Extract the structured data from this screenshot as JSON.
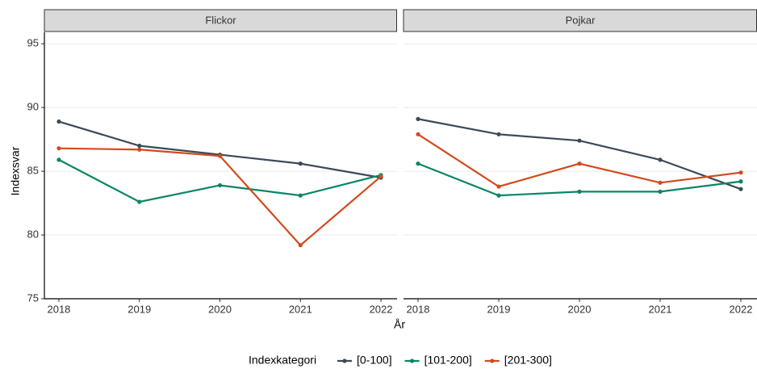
{
  "chart_data": [
    {
      "type": "line",
      "title": "Flickor",
      "x": [
        2018,
        2019,
        2020,
        2021,
        2022
      ],
      "xlim": [
        2017.82,
        2022.2
      ],
      "ylim": [
        75,
        95.9
      ],
      "yticks": [
        75,
        80,
        85,
        90,
        95
      ],
      "grid": true,
      "series": [
        {
          "name": "[0-100]",
          "color": "#3b4a5a",
          "values": [
            88.9,
            87.0,
            86.3,
            85.6,
            84.5
          ]
        },
        {
          "name": "[101-200]",
          "color": "#0b8566",
          "values": [
            85.9,
            82.6,
            83.9,
            83.1,
            84.7
          ]
        },
        {
          "name": "[201-300]",
          "color": "#d24a1e",
          "values": [
            86.8,
            86.7,
            86.2,
            79.2,
            84.6
          ]
        }
      ]
    },
    {
      "type": "line",
      "title": "Pojkar",
      "x": [
        2018,
        2019,
        2020,
        2021,
        2022
      ],
      "xlim": [
        2017.82,
        2022.2
      ],
      "ylim": [
        75,
        95.9
      ],
      "yticks": [
        75,
        80,
        85,
        90,
        95
      ],
      "grid": true,
      "series": [
        {
          "name": "[0-100]",
          "color": "#3b4a5a",
          "values": [
            89.1,
            87.9,
            87.4,
            85.9,
            83.6
          ]
        },
        {
          "name": "[101-200]",
          "color": "#0b8566",
          "values": [
            85.6,
            83.1,
            83.4,
            83.4,
            84.2
          ]
        },
        {
          "name": "[201-300]",
          "color": "#d24a1e",
          "values": [
            87.9,
            83.8,
            85.6,
            84.1,
            84.9
          ]
        }
      ]
    }
  ],
  "xlabel": "År",
  "ylabel": "Indexsvar",
  "legend": {
    "title": "Indexkategori",
    "position": "bottom"
  }
}
